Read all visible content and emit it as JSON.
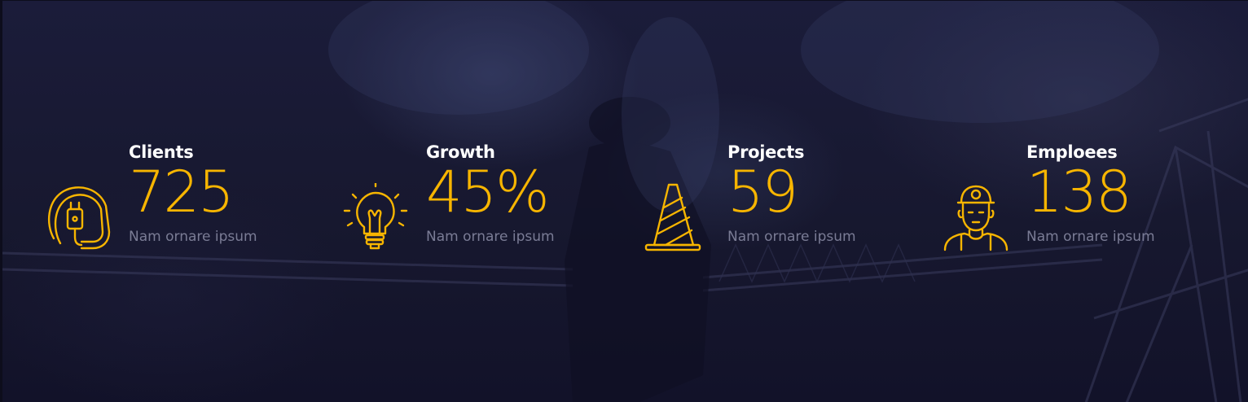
{
  "colors": {
    "accent": "#f7b500",
    "label": "#ffffff",
    "caption": "#7a7c95",
    "background": "#16162f"
  },
  "stats": [
    {
      "label": "Clients",
      "value": "725",
      "caption": "Nam ornare ipsum",
      "icon": "power-plug-icon"
    },
    {
      "label": "Growth",
      "value": "45%",
      "caption": "Nam ornare ipsum",
      "icon": "light-bulb-icon"
    },
    {
      "label": "Projects",
      "value": "59",
      "caption": "Nam ornare ipsum",
      "icon": "traffic-cone-icon"
    },
    {
      "label": "Emploees",
      "value": "138",
      "caption": "Nam ornare ipsum",
      "icon": "construction-worker-icon"
    }
  ]
}
